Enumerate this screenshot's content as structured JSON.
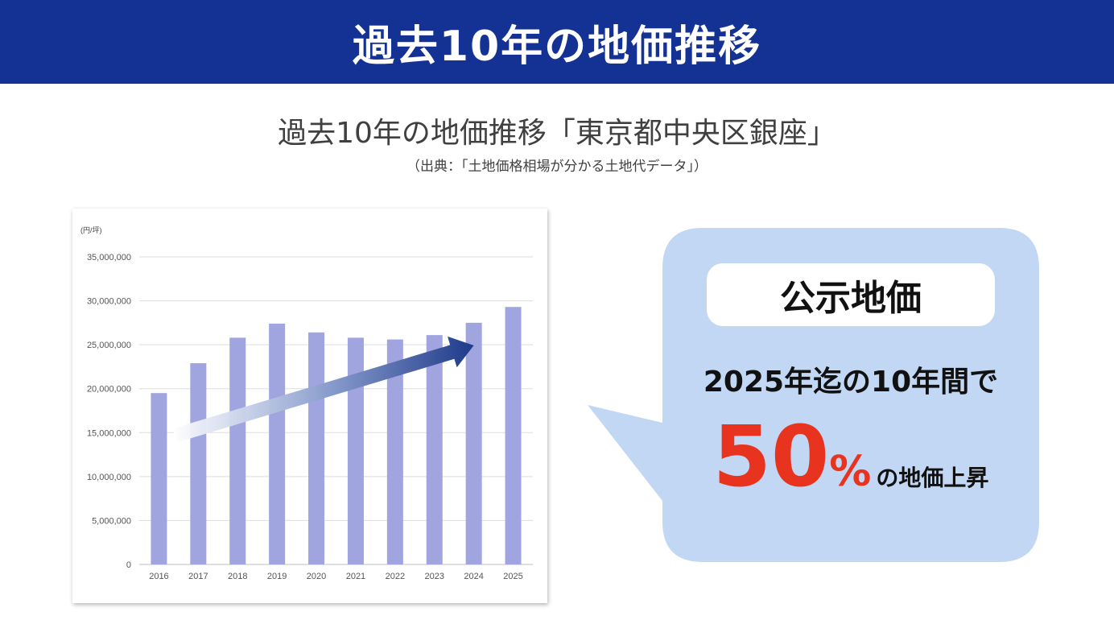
{
  "banner": {
    "title": "過去10年の地価推移"
  },
  "subtitle": "過去10年の地価推移「東京都中央区銀座」",
  "source": "（出典：「土地価格相場が分かる土地代データ」）",
  "callout": {
    "pill_label": "公示地価",
    "line1": "2025年迄の10年間で",
    "percent_value": "50",
    "percent_sign": "%",
    "percent_tail": "の地価上昇"
  },
  "colors": {
    "banner": "#143294",
    "bar": "#a0a4df",
    "callout": "#c2d7f4",
    "highlight": "#e8331f",
    "arrow": "#1e3a8a"
  },
  "chart_data": {
    "type": "bar",
    "unit_label": "(円/坪)",
    "categories": [
      "2016",
      "2017",
      "2018",
      "2019",
      "2020",
      "2021",
      "2022",
      "2023",
      "2024",
      "2025"
    ],
    "values": [
      19500000,
      22900000,
      25800000,
      27400000,
      26400000,
      25800000,
      25600000,
      26100000,
      27500000,
      29300000
    ],
    "ylim": [
      0,
      35000000
    ],
    "yticks": [
      "0",
      "5,000,000",
      "10,000,000",
      "15,000,000",
      "20,000,000",
      "25,000,000",
      "30,000,000",
      "35,000,000"
    ],
    "grid": true,
    "annotation": "upward trend arrow"
  }
}
